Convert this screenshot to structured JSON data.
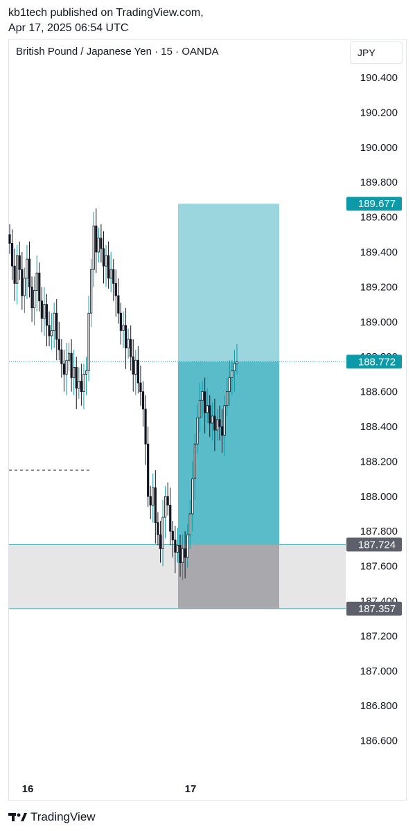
{
  "header": {
    "line1": "kb1tech published on TradingView.com,",
    "line2": "Apr 17, 2025 06:54 UTC"
  },
  "symbol": {
    "title": "British Pound / Japanese Yen · 15 · OANDA",
    "currency": "JPY"
  },
  "colors": {
    "target_zone": "#9bd6df",
    "filled_zone": "#5bbcc9",
    "stop_zone": "#a9a9ad",
    "support_zone": "#e6e6e6",
    "price_label": "#0c9aa8",
    "stop_label": "#5d606b",
    "candle": "#131722",
    "wick_up": "#0c9aa8"
  },
  "brand": {
    "name": "TradingView"
  },
  "chart_data": {
    "type": "candlestick",
    "y_axis": {
      "ticks": [
        "190.400",
        "190.200",
        "190.000",
        "189.800",
        "189.600",
        "189.400",
        "189.200",
        "189.000",
        "188.800",
        "188.600",
        "188.400",
        "188.200",
        "188.000",
        "187.800",
        "187.600",
        "187.400",
        "187.200",
        "187.000",
        "186.800",
        "186.600"
      ],
      "range": [
        186.5,
        190.45
      ]
    },
    "x_axis": {
      "ticks": [
        "16",
        "17"
      ]
    },
    "price_labels": {
      "target": "189.677",
      "current": "188.772",
      "entry": "187.724",
      "stop": "187.357"
    },
    "levels": {
      "target": 189.677,
      "current": 188.772,
      "entry": 187.724,
      "stop": 187.357,
      "dashed_level": 188.15
    },
    "closes": [
      189.45,
      189.32,
      189.22,
      189.38,
      189.3,
      189.15,
      189.25,
      189.36,
      189.2,
      189.08,
      189.18,
      189.28,
      189.12,
      189.02,
      189.1,
      188.98,
      188.92,
      188.95,
      189.05,
      188.9,
      188.84,
      188.76,
      188.7,
      188.78,
      188.82,
      188.68,
      188.74,
      188.62,
      188.66,
      188.6,
      188.7,
      188.72,
      189.05,
      189.3,
      189.55,
      189.4,
      189.48,
      189.42,
      189.32,
      189.38,
      189.25,
      189.3,
      189.22,
      189.15,
      189.05,
      188.95,
      188.98,
      188.85,
      188.9,
      188.8,
      188.7,
      188.78,
      188.65,
      188.6,
      188.5,
      188.3,
      188.0,
      187.95,
      188.05,
      187.85,
      187.78,
      187.7,
      187.88,
      188.0,
      187.95,
      187.8,
      187.75,
      187.68,
      187.72,
      187.62,
      187.7,
      187.65,
      187.78,
      187.9,
      188.1,
      188.3,
      188.45,
      188.55,
      188.6,
      188.48,
      188.52,
      188.42,
      188.46,
      188.38,
      188.44,
      188.4,
      188.35,
      188.52,
      188.6,
      188.68,
      188.72,
      188.76,
      188.772
    ]
  }
}
